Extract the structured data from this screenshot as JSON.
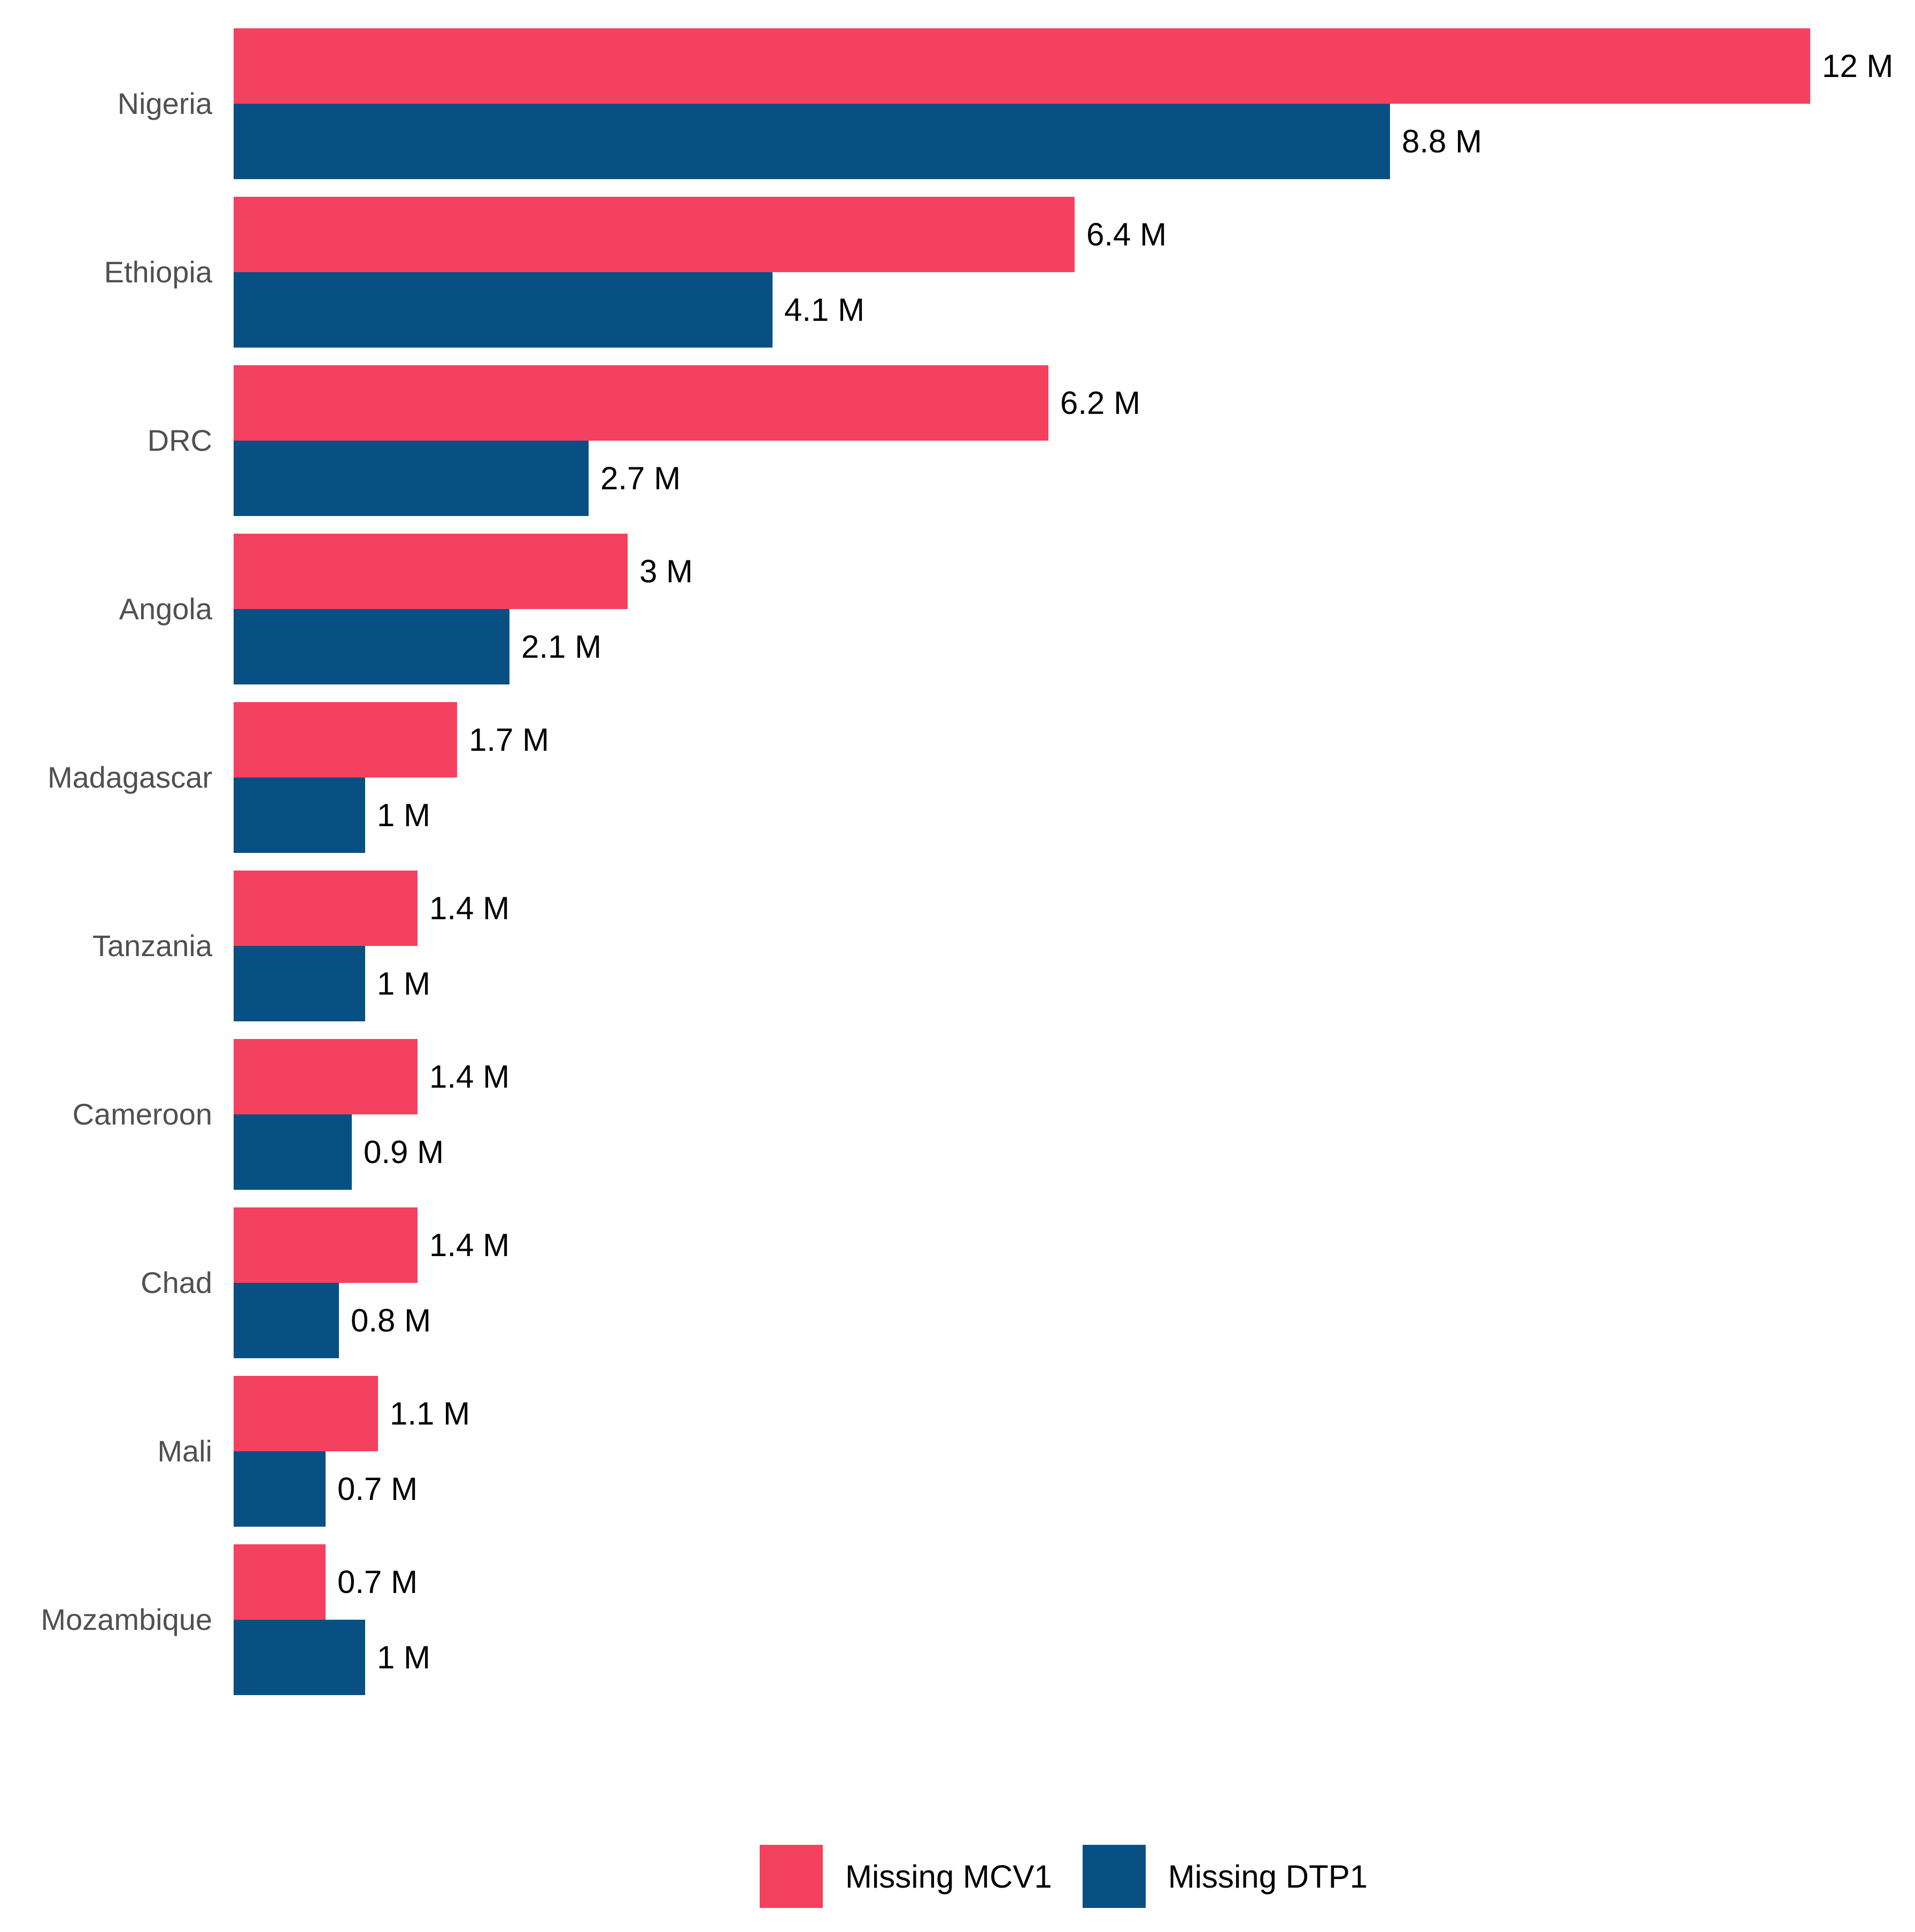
{
  "chart_data": {
    "type": "bar",
    "orientation": "horizontal",
    "title": "",
    "xlabel": "",
    "ylabel": "",
    "unit": "M",
    "xlim": [
      0,
      12
    ],
    "grid": false,
    "legend_position": "bottom",
    "categories": [
      "Nigeria",
      "Ethiopia",
      "DRC",
      "Angola",
      "Madagascar",
      "Tanzania",
      "Cameroon",
      "Chad",
      "Mali",
      "Mozambique"
    ],
    "series": [
      {
        "name": "Missing MCV1",
        "color": "#f4415f",
        "values": [
          12,
          6.4,
          6.2,
          3,
          1.7,
          1.4,
          1.4,
          1.4,
          1.1,
          0.7
        ],
        "labels": [
          "12 M",
          "6.4 M",
          "6.2 M",
          "3 M",
          "1.7 M",
          "1.4 M",
          "1.4 M",
          "1.4 M",
          "1.1 M",
          "0.7 M"
        ]
      },
      {
        "name": "Missing DTP1",
        "color": "#085084",
        "values": [
          8.8,
          4.1,
          2.7,
          2.1,
          1,
          1,
          0.9,
          0.8,
          0.7,
          1
        ],
        "labels": [
          "8.8 M",
          "4.1 M",
          "2.7 M",
          "2.1 M",
          "1 M",
          "1 M",
          "0.9 M",
          "0.8 M",
          "0.7 M",
          "1 M"
        ]
      }
    ],
    "label_color": "#505052",
    "value_label_color": "#000000"
  }
}
